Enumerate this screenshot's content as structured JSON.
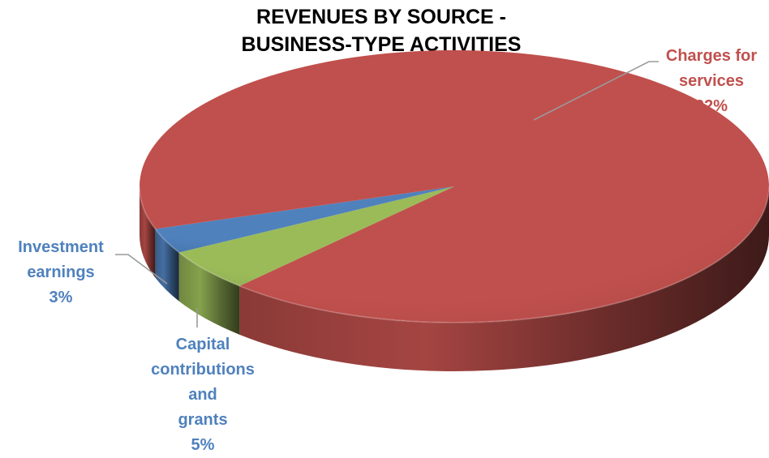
{
  "chart_data": {
    "type": "pie",
    "title_lines": [
      "REVENUES BY SOURCE -",
      "BUSINESS-TYPE ACTIVITIES"
    ],
    "slices": [
      {
        "key": "charges",
        "label_lines": [
          "Charges for",
          "services"
        ],
        "value_label": "92%",
        "value": 92,
        "color": "#C0504D"
      },
      {
        "key": "capital",
        "label_lines": [
          "Capital",
          "contributions and",
          "grants"
        ],
        "value_label": "5%",
        "value": 5,
        "color": "#9BBB59"
      },
      {
        "key": "investment",
        "label_lines": [
          "Investment",
          "earnings"
        ],
        "value_label": "3%",
        "value": 3,
        "color": "#4F81BD"
      }
    ],
    "style_3d": true,
    "legend": "none"
  }
}
